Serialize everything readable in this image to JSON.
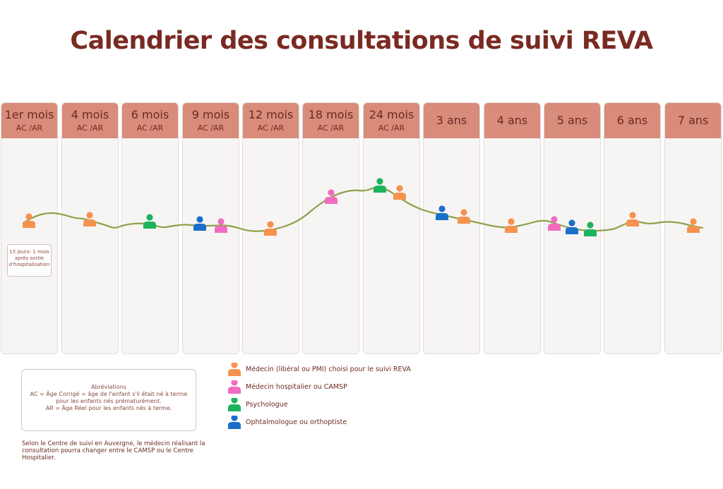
{
  "title": "Calendrier des consultations de suivi REVA",
  "columns": [
    {
      "age": "1er mois",
      "sub": "AC /AR"
    },
    {
      "age": "4 mois",
      "sub": "AC /AR"
    },
    {
      "age": "6 mois",
      "sub": "AC /AR"
    },
    {
      "age": "9 mois",
      "sub": "AC /AR"
    },
    {
      "age": "12 mois",
      "sub": "AC /AR"
    },
    {
      "age": "18 mois",
      "sub": "AC /AR"
    },
    {
      "age": "24 mois",
      "sub": "AC /AR"
    },
    {
      "age": "3 ans",
      "sub": ""
    },
    {
      "age": "4 ans",
      "sub": ""
    },
    {
      "age": "5 ans",
      "sub": ""
    },
    {
      "age": "6 ans",
      "sub": ""
    },
    {
      "age": "7 ans",
      "sub": ""
    }
  ],
  "first_month_note": "15 jours- 1 mois après sortie d'hospitalisation",
  "abbreviations": {
    "heading": "Abréviations",
    "ac": "AC = Âge Corrigé = âge de l'enfant s'il était né à terme pour les enfants nés prématurément.",
    "ar": "AR = Âge Réel pour les enfants nés à terme."
  },
  "footnote": "Selon le Centre de suivi en Auvergne, le médecin réalisant la consultation pourra changer entre le CAMSP ou le Centre Hospitalier.",
  "legend": [
    {
      "label": "Médecin (libéral ou PMI) choisi pour le suivi REVA",
      "color": "#f5924e"
    },
    {
      "label": "Médecin hospitalier ou CAMSP",
      "color": "#f06cc0"
    },
    {
      "label": "Psychologue",
      "color": "#1db35c"
    },
    {
      "label": "Ophtalmologue ou orthoptiste",
      "color": "#1a6fc9"
    }
  ],
  "colors": {
    "header": "#d98c7a",
    "title": "#7a2a22",
    "curve": "#8ea14a"
  }
}
